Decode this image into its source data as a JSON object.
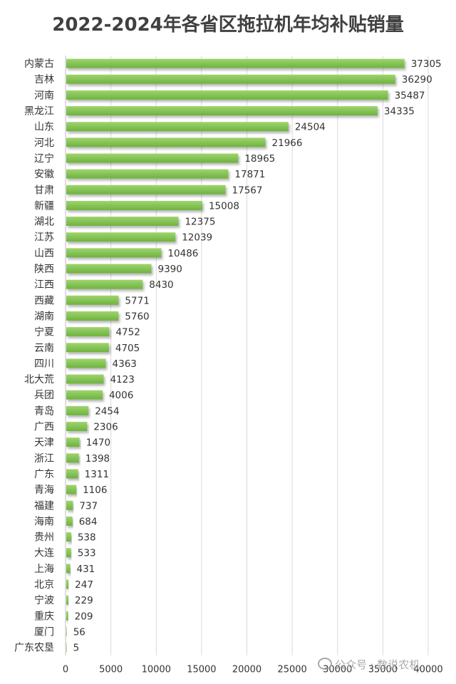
{
  "chart_data": {
    "type": "bar",
    "orientation": "horizontal",
    "title": "2022-2024年各省区拖拉机年均补贴销量",
    "categories": [
      "内蒙古",
      "吉林",
      "河南",
      "黑龙江",
      "山东",
      "河北",
      "辽宁",
      "安徽",
      "甘肃",
      "新疆",
      "湖北",
      "江苏",
      "山西",
      "陕西",
      "江西",
      "西藏",
      "湖南",
      "宁夏",
      "云南",
      "四川",
      "北大荒",
      "兵团",
      "青岛",
      "广西",
      "天津",
      "浙江",
      "广东",
      "青海",
      "福建",
      "海南",
      "贵州",
      "大连",
      "上海",
      "北京",
      "宁波",
      "重庆",
      "厦门",
      "广东农垦"
    ],
    "values": [
      37305,
      36290,
      35487,
      34335,
      24504,
      21966,
      18965,
      17871,
      17567,
      15008,
      12375,
      12039,
      10486,
      9390,
      8430,
      5771,
      5760,
      4752,
      4705,
      4363,
      4123,
      4006,
      2454,
      2306,
      1470,
      1398,
      1311,
      1106,
      737,
      684,
      538,
      533,
      431,
      247,
      229,
      209,
      56,
      5
    ],
    "xlim": [
      0,
      40000
    ],
    "xticks": [
      0,
      5000,
      10000,
      15000,
      20000,
      25000,
      30000,
      35000,
      40000
    ],
    "xlabel": "",
    "ylabel": "",
    "grid": true,
    "bar_color": "#6db33f",
    "bar_color_light": "#9fd46e",
    "grid_color": "#d9d9d9"
  },
  "watermark": {
    "icon": "wechat-icon",
    "text": "公众号 · 数说农机"
  }
}
